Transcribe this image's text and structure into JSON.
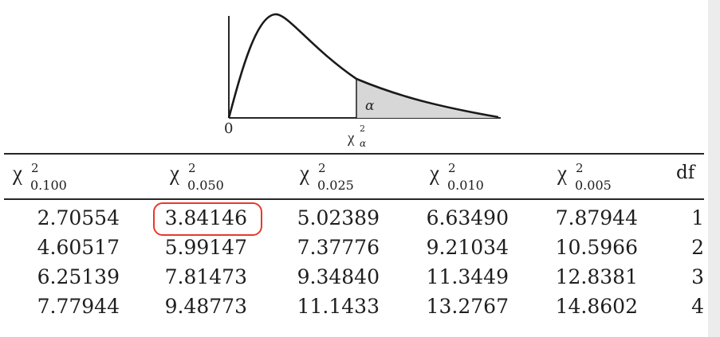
{
  "figure": {
    "origin_label": "0",
    "alpha_label": "α",
    "critical_label": "χ",
    "critical_sup": "2",
    "critical_sub": "α"
  },
  "table": {
    "columns": [
      {
        "symbol": "χ",
        "sup": "2",
        "sub": "0.100"
      },
      {
        "symbol": "χ",
        "sup": "2",
        "sub": "0.050"
      },
      {
        "symbol": "χ",
        "sup": "2",
        "sub": "0.025"
      },
      {
        "symbol": "χ",
        "sup": "2",
        "sub": "0.010"
      },
      {
        "symbol": "χ",
        "sup": "2",
        "sub": "0.005"
      }
    ],
    "df_header": "df",
    "rows": [
      {
        "values": [
          "2.70554",
          "3.84146",
          "5.02389",
          "6.63490",
          "7.87944"
        ],
        "df": "1"
      },
      {
        "values": [
          "4.60517",
          "5.99147",
          "7.37776",
          "9.21034",
          "10.5966"
        ],
        "df": "2"
      },
      {
        "values": [
          "6.25139",
          "7.81473",
          "9.34840",
          "11.3449",
          "12.8381"
        ],
        "df": "3"
      },
      {
        "values": [
          "7.77944",
          "9.48773",
          "11.1433",
          "13.2767",
          "14.8602"
        ],
        "df": "4"
      }
    ],
    "highlight_color": "#e8392b"
  }
}
